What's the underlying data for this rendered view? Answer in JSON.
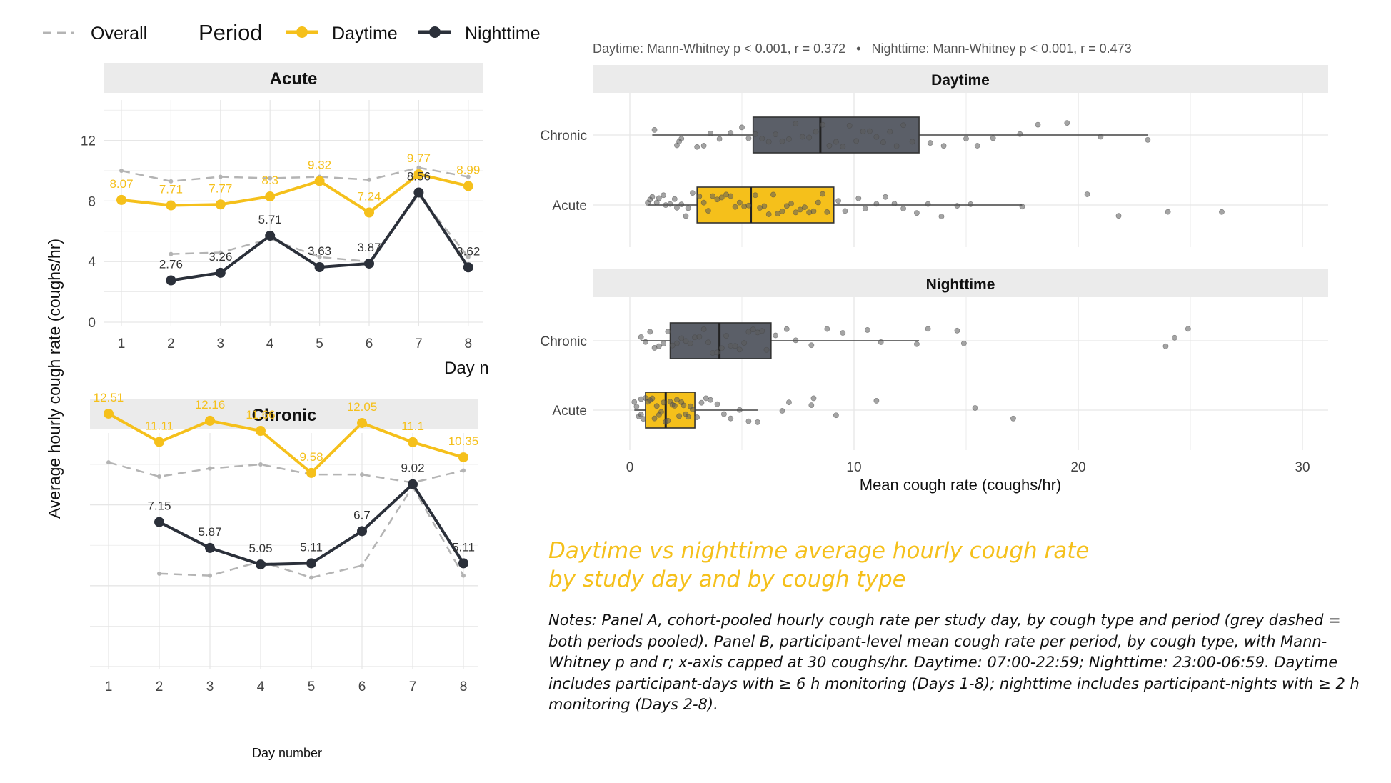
{
  "subtitle": "Daytime vs nighttime average hourly cough rate by study day and by cough type",
  "notes": "Notes: Panel A, cohort-pooled hourly cough rate per study day, by cough type and period (grey dashed = both periods pooled). Panel B, participant-level mean cough rate per period, by cough type, with Mann-Whitney p and r; x-axis capped at 30 coughs/hr. Daytime: 07:00-22:59; Nighttime: 23:00-06:59. Daytime includes participant-days with ≥ 6 h monitoring (Days 1-8); nighttime includes participant-nights with ≥ 2 h monitoring (Days 2-8).",
  "colors": {
    "daytime": "#f5c01b",
    "nighttime": "#2b303a",
    "overall": "#b4b4b4",
    "strip": "#ebebeb",
    "grid": "#e6e6e6",
    "chronic_box": "#5b5f68"
  },
  "legend": {
    "overall": "Overall",
    "period_title": "Period",
    "daytime": "Daytime",
    "nighttime": "Nighttime"
  },
  "chart_data": [
    {
      "type": "line",
      "panel": "Acute",
      "ylabel": "Average hourly cough rate (coughs/hr)",
      "xlabel": "Day n",
      "x": [
        1,
        2,
        3,
        4,
        5,
        6,
        7,
        8
      ],
      "ylim": [
        0,
        14
      ],
      "yticks": [
        0,
        4,
        8,
        12
      ],
      "series": [
        {
          "name": "Daytime",
          "values": [
            8.07,
            7.71,
            7.77,
            8.3,
            9.32,
            7.24,
            9.77,
            8.99
          ],
          "labels": [
            "8.07",
            "7.71",
            "7.77",
            "8.3",
            "9.32",
            "7.24",
            "9.77",
            "8.99"
          ]
        },
        {
          "name": "Nighttime",
          "values": [
            null,
            2.76,
            3.26,
            5.71,
            3.63,
            3.87,
            8.56,
            3.62
          ],
          "labels": [
            "",
            "2.76",
            "3.26",
            "5.71",
            "3.63",
            "3.87",
            "8.56",
            "3.62"
          ]
        },
        {
          "name": "Overall",
          "values": [
            10.0,
            9.3,
            9.6,
            9.5,
            9.6,
            9.4,
            10.2,
            9.6
          ]
        },
        {
          "name": "Overall",
          "values": [
            null,
            4.5,
            4.6,
            5.5,
            4.3,
            4.0,
            8.4,
            4.3
          ]
        }
      ],
      "grid": true
    },
    {
      "type": "line",
      "panel": "Chronic",
      "xlabel": "Day number",
      "x": [
        1,
        2,
        3,
        4,
        5,
        6,
        7,
        8
      ],
      "ylim": [
        0,
        14
      ],
      "series": [
        {
          "name": "Daytime",
          "values": [
            12.51,
            11.11,
            12.16,
            11.66,
            9.58,
            12.05,
            11.1,
            10.35
          ],
          "labels": [
            "12.51",
            "11.11",
            "12.16",
            "11.66",
            "9.58",
            "12.05",
            "11.1",
            "10.35"
          ]
        },
        {
          "name": "Nighttime",
          "values": [
            null,
            7.15,
            5.87,
            5.05,
            5.11,
            6.7,
            9.02,
            5.11
          ],
          "labels": [
            "",
            "7.15",
            "5.87",
            "5.05",
            "5.11",
            "6.7",
            "9.02",
            "5.11"
          ]
        },
        {
          "name": "Overall",
          "values": [
            10.1,
            9.4,
            9.8,
            10.0,
            9.5,
            9.5,
            9.1,
            9.7
          ]
        },
        {
          "name": "Overall",
          "values": [
            null,
            4.6,
            4.5,
            5.2,
            4.4,
            5.0,
            8.9,
            4.5
          ]
        }
      ],
      "grid": true
    },
    {
      "type": "box",
      "stats_text": "Daytime: Mann-Whitney p < 0.001, r = 0.372   •   Nighttime: Mann-Whitney p < 0.001, r = 0.473",
      "xlabel": "Mean cough rate (coughs/hr)",
      "xlim": [
        0,
        30
      ],
      "xticks": [
        0,
        10,
        20,
        30
      ],
      "panels": [
        {
          "title": "Daytime",
          "groups": [
            {
              "name": "Chronic",
              "whisker_low": 1.0,
              "q1": 5.5,
              "median": 8.5,
              "q3": 12.9,
              "whisker_high": 23.1,
              "points": [
                1.1,
                2.1,
                2.3,
                2.2,
                3.0,
                3.3,
                3.6,
                4.0,
                4.5,
                5.0,
                5.3,
                5.6,
                5.9,
                6.2,
                6.5,
                6.8,
                7.1,
                7.4,
                7.7,
                8.0,
                8.3,
                8.6,
                8.9,
                9.2,
                9.5,
                9.8,
                10.1,
                10.4,
                10.7,
                11.0,
                11.3,
                11.6,
                11.9,
                12.2,
                12.6,
                13.4,
                14.0,
                15.0,
                15.5,
                16.2,
                17.4,
                18.2,
                19.5,
                21.0,
                23.1
              ]
            },
            {
              "name": "Acute",
              "whisker_low": 0.8,
              "q1": 3.0,
              "median": 5.4,
              "q3": 9.1,
              "whisker_high": 17.5,
              "points": [
                0.8,
                0.9,
                1.0,
                1.2,
                1.3,
                1.5,
                1.6,
                1.8,
                2.0,
                2.1,
                2.3,
                2.5,
                2.6,
                2.8,
                3.1,
                3.3,
                3.5,
                3.7,
                3.9,
                4.1,
                4.3,
                4.5,
                4.7,
                4.9,
                5.1,
                5.3,
                5.6,
                5.8,
                6.0,
                6.2,
                6.4,
                6.6,
                6.8,
                7.0,
                7.2,
                7.4,
                7.6,
                7.8,
                8.0,
                8.2,
                8.4,
                8.6,
                8.8,
                9.3,
                9.6,
                10.2,
                10.5,
                11.0,
                11.4,
                11.8,
                12.2,
                12.8,
                13.3,
                13.9,
                14.6,
                15.2,
                17.5,
                20.4,
                21.8,
                24.0,
                26.4
              ]
            }
          ]
        },
        {
          "title": "Nighttime",
          "groups": [
            {
              "name": "Chronic",
              "whisker_low": 0.5,
              "q1": 1.8,
              "median": 4.0,
              "q3": 6.3,
              "whisker_high": 12.9,
              "points": [
                0.5,
                0.7,
                0.9,
                1.1,
                1.3,
                1.5,
                1.7,
                1.9,
                2.1,
                2.3,
                2.5,
                2.7,
                2.9,
                3.1,
                3.3,
                3.5,
                3.7,
                3.9,
                4.1,
                4.3,
                4.5,
                4.7,
                4.9,
                5.1,
                5.3,
                5.5,
                5.7,
                5.9,
                6.1,
                6.5,
                7.0,
                7.4,
                8.1,
                8.8,
                9.5,
                10.6,
                11.2,
                12.8,
                13.3,
                14.6,
                14.9,
                23.9,
                24.3,
                24.9
              ]
            },
            {
              "name": "Acute",
              "whisker_low": 0.2,
              "q1": 0.7,
              "median": 1.6,
              "q3": 2.9,
              "whisker_high": 5.7,
              "points": [
                0.2,
                0.3,
                0.4,
                0.5,
                0.5,
                0.6,
                0.7,
                0.8,
                0.9,
                1.0,
                1.1,
                1.2,
                1.3,
                1.4,
                1.5,
                1.6,
                1.7,
                1.8,
                1.9,
                2.0,
                2.1,
                2.2,
                2.3,
                2.4,
                2.5,
                2.6,
                2.7,
                2.8,
                3.0,
                3.2,
                3.4,
                3.6,
                3.9,
                4.2,
                4.5,
                4.9,
                5.3,
                5.7,
                6.8,
                7.1,
                8.1,
                8.2,
                9.2,
                11.0,
                15.4,
                17.1
              ]
            }
          ]
        }
      ]
    }
  ]
}
